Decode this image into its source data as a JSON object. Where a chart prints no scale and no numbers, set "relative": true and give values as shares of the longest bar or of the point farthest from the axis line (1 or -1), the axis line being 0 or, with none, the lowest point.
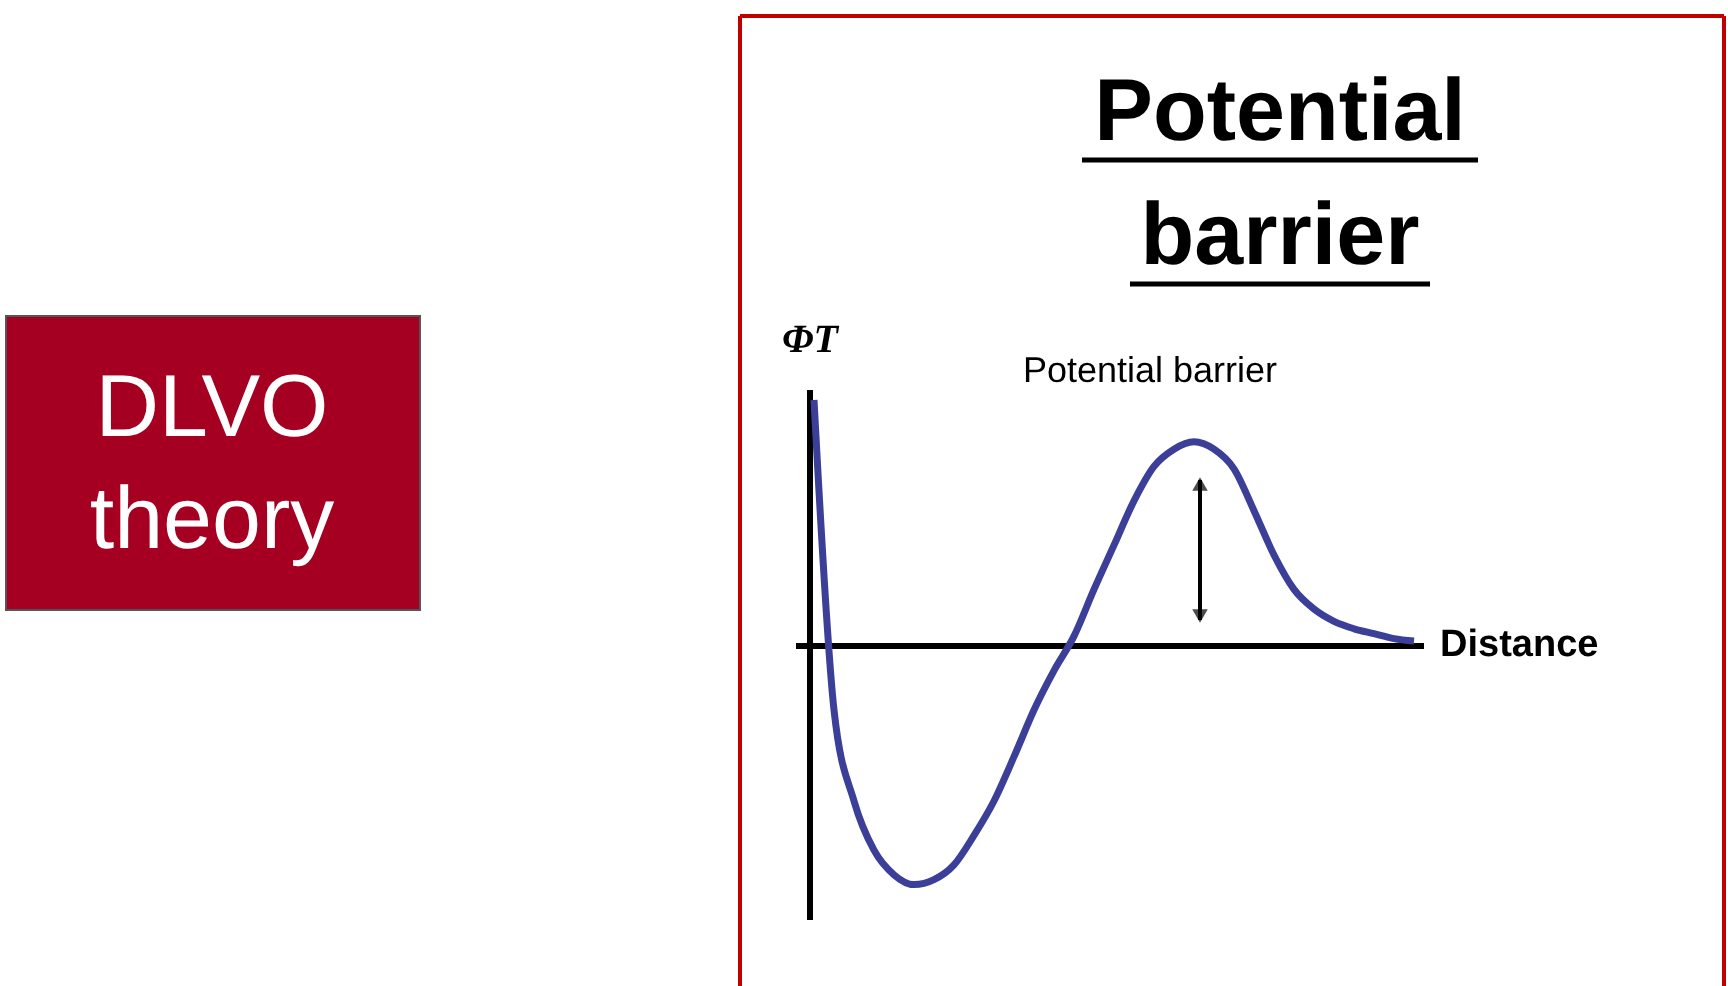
{
  "chart_data": {
    "type": "line",
    "title": "Potential barrier",
    "xlabel": "Distance",
    "ylabel": "ΦT",
    "relative": true,
    "categories": [
      null,
      null,
      null,
      null,
      null,
      null,
      null,
      null,
      null,
      null,
      null,
      null,
      null,
      null,
      null,
      null,
      null,
      null,
      null,
      null,
      null,
      null,
      null,
      null,
      null,
      null,
      null,
      null,
      null,
      null,
      null
    ],
    "series": [
      {
        "color": "#3b3f98",
        "values": [
          1.0,
          -0.26,
          -0.63,
          -0.83,
          -0.93,
          -0.97,
          -0.95,
          -0.89,
          -0.77,
          -0.63,
          -0.45,
          -0.26,
          -0.1,
          0.04,
          0.23,
          0.41,
          0.59,
          0.73,
          0.8,
          0.83,
          0.8,
          0.72,
          0.55,
          0.37,
          0.23,
          0.15,
          0.1,
          0.07,
          0.05,
          0.03,
          0.02
        ]
      }
    ],
    "annotations": [
      "DLVO theory",
      "Potential barrier"
    ]
  }
}
